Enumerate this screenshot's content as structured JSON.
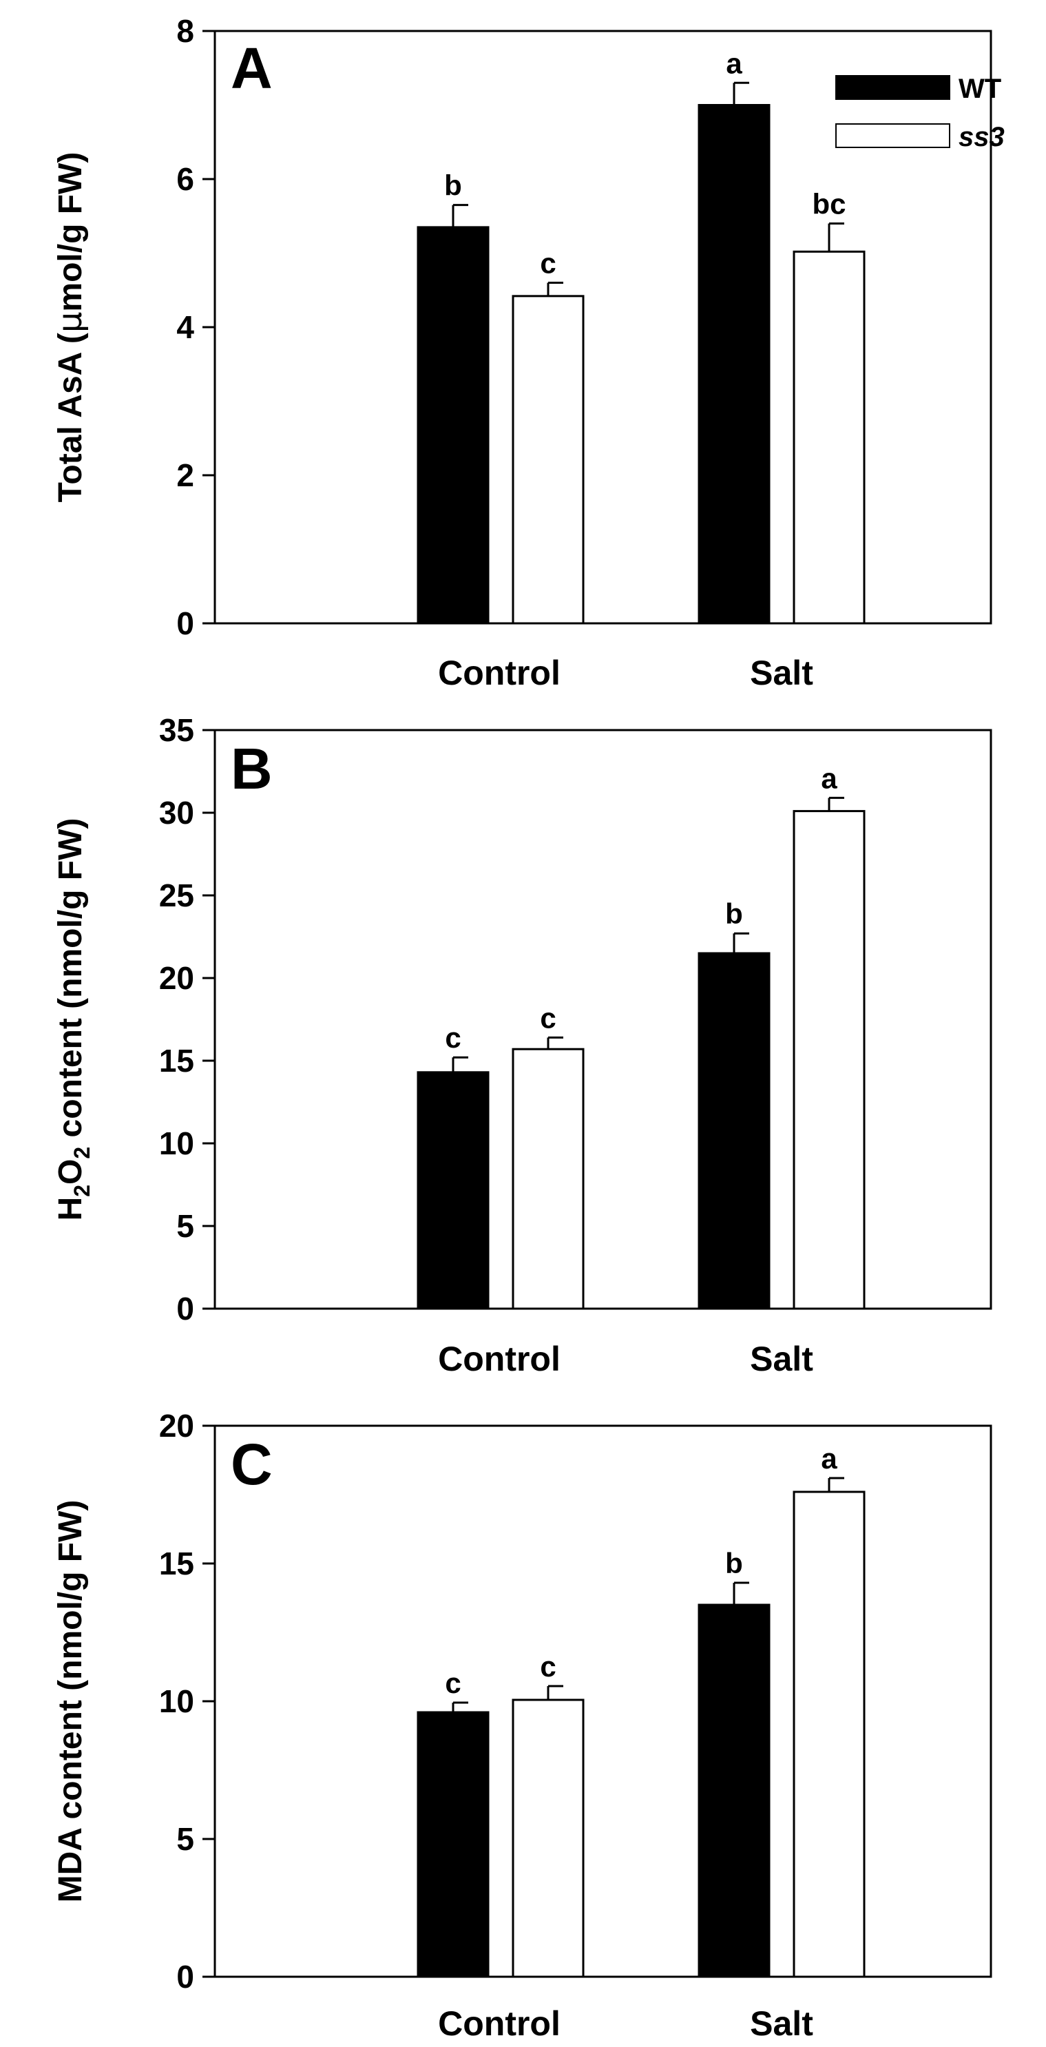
{
  "chart_data": [
    {
      "type": "bar",
      "panel": "A",
      "categories": [
        "Control",
        "Salt"
      ],
      "series": [
        {
          "name": "WT",
          "values": [
            5.35,
            7.0
          ],
          "errors": [
            0.3,
            0.3
          ],
          "letters": [
            "b",
            "a"
          ],
          "color": "#000000"
        },
        {
          "name": "ss3",
          "values": [
            4.42,
            5.02
          ],
          "errors": [
            0.18,
            0.38
          ],
          "letters": [
            "c",
            "bc"
          ],
          "color": "#ffffff"
        }
      ],
      "ylabel_parts": [
        "Total AsA (",
        "μ",
        "mol/g FW)"
      ],
      "ylim": [
        0,
        8
      ],
      "yticks": [
        "0",
        "2",
        "4",
        "6",
        "8"
      ],
      "legend": {
        "placement": "top-right",
        "entries": [
          "WT",
          "ss3"
        ]
      }
    },
    {
      "type": "bar",
      "panel": "B",
      "categories": [
        "Control",
        "Salt"
      ],
      "series": [
        {
          "name": "WT",
          "values": [
            14.3,
            21.5
          ],
          "errors": [
            0.9,
            1.2
          ],
          "letters": [
            "c",
            "b"
          ],
          "color": "#000000"
        },
        {
          "name": "ss3",
          "values": [
            15.7,
            30.1
          ],
          "errors": [
            0.7,
            0.8
          ],
          "letters": [
            "c",
            "a"
          ],
          "color": "#ffffff"
        }
      ],
      "ylabel_parts": [
        "H",
        "2",
        "O",
        "2",
        " content (nmol/g FW)"
      ],
      "ylim": [
        0,
        35
      ],
      "yticks": [
        "0",
        "5",
        "10",
        "15",
        "20",
        "25",
        "30",
        "35"
      ]
    },
    {
      "type": "bar",
      "panel": "C",
      "categories": [
        "Control",
        "Salt"
      ],
      "series": [
        {
          "name": "WT",
          "values": [
            9.6,
            13.5
          ],
          "errors": [
            0.35,
            0.8
          ],
          "letters": [
            "c",
            "b"
          ],
          "color": "#000000"
        },
        {
          "name": "ss3",
          "values": [
            10.05,
            17.6
          ],
          "errors": [
            0.5,
            0.5
          ],
          "letters": [
            "c",
            "a"
          ],
          "color": "#ffffff"
        }
      ],
      "ylabel_parts": [
        "MDA content (nmol/g FW)"
      ],
      "ylim": [
        0,
        20
      ],
      "yticks": [
        "0",
        "5",
        "10",
        "15",
        "20"
      ]
    }
  ]
}
